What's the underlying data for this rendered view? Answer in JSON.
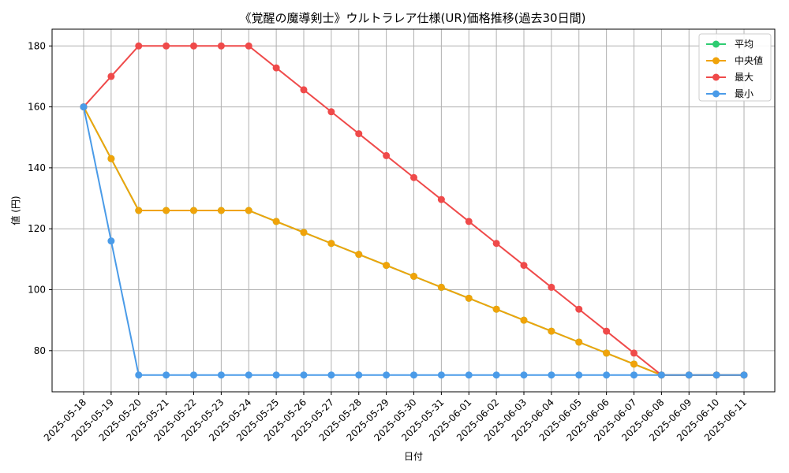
{
  "chart_data": {
    "type": "line",
    "title": "《覚醒の魔導剣士》ウルトラレア仕様(UR)価格推移(過去30日間)",
    "xlabel": "日付",
    "ylabel": "値 (円)",
    "ylim": [
      66.5,
      185.5
    ],
    "yticks": [
      80,
      100,
      120,
      140,
      160,
      180
    ],
    "grid": true,
    "legend_position": "top-right",
    "categories": [
      "2025-05-18",
      "2025-05-19",
      "2025-05-20",
      "2025-05-21",
      "2025-05-22",
      "2025-05-23",
      "2025-05-24",
      "2025-05-25",
      "2025-05-26",
      "2025-05-27",
      "2025-05-28",
      "2025-05-29",
      "2025-05-30",
      "2025-05-31",
      "2025-06-01",
      "2025-06-02",
      "2025-06-03",
      "2025-06-04",
      "2025-06-05",
      "2025-06-06",
      "2025-06-07",
      "2025-06-08",
      "2025-06-09",
      "2025-06-10",
      "2025-06-11"
    ],
    "series": [
      {
        "name": "平均",
        "color": "#2ecc71",
        "values": [
          160,
          143,
          126,
          126,
          126,
          126,
          126,
          122.4,
          118.8,
          115.2,
          111.6,
          108,
          104.4,
          100.8,
          97.2,
          93.6,
          90,
          86.4,
          82.8,
          79.2,
          75.6,
          72,
          72,
          72,
          72
        ]
      },
      {
        "name": "中央値",
        "color": "#f0a30a",
        "values": [
          160,
          143,
          126,
          126,
          126,
          126,
          126,
          122.4,
          118.8,
          115.2,
          111.6,
          108,
          104.4,
          100.8,
          97.2,
          93.6,
          90,
          86.4,
          82.8,
          79.2,
          75.6,
          72,
          72,
          72,
          72
        ]
      },
      {
        "name": "最大",
        "color": "#ef4a4a",
        "values": [
          160,
          170,
          180,
          180,
          180,
          180,
          180,
          172.8,
          165.6,
          158.4,
          151.2,
          144,
          136.8,
          129.6,
          122.4,
          115.2,
          108,
          100.8,
          93.6,
          86.4,
          79.2,
          72,
          72,
          72,
          72
        ]
      },
      {
        "name": "最小",
        "color": "#4a9be8",
        "values": [
          160,
          116,
          72,
          72,
          72,
          72,
          72,
          72,
          72,
          72,
          72,
          72,
          72,
          72,
          72,
          72,
          72,
          72,
          72,
          72,
          72,
          72,
          72,
          72,
          72
        ]
      }
    ]
  }
}
